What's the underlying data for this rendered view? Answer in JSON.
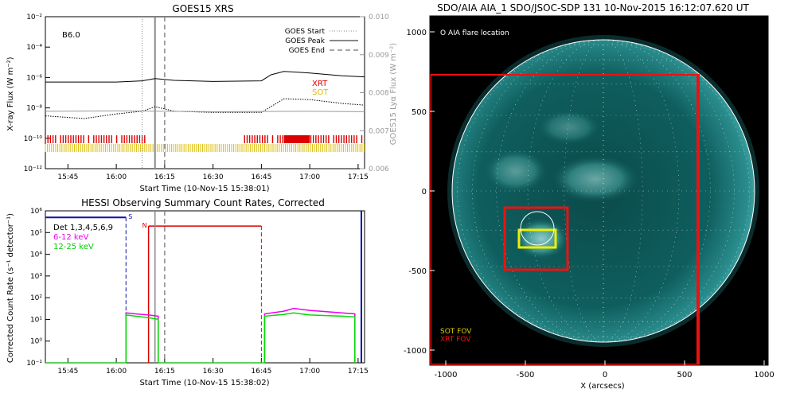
{
  "panel_goes": {
    "title": "GOES15 XRS",
    "class_label": "B6.0",
    "ylabel_left": "X-ray Flux (W m⁻²)",
    "ylabel_right": "GOES15 Lyα Flux (W m⁻²)",
    "xlabel": "Start Time (10-Nov-15 15:38:01)",
    "legend": [
      "GOES Start",
      "GOES Peak",
      "GOES End"
    ],
    "inst_xrt": "XRT",
    "inst_sot": "SOT",
    "xticks": [
      "15:45",
      "16:00",
      "16:15",
      "16:30",
      "16:45",
      "17:00",
      "17:15"
    ],
    "yticks_left": [
      "10⁻²",
      "10⁻⁴",
      "10⁻⁶",
      "10⁻⁸",
      "10⁻¹⁰",
      "10⁻¹²"
    ],
    "yticks_right": [
      "0.010",
      "0.009",
      "0.008",
      "0.007",
      "0.006"
    ]
  },
  "panel_hessi": {
    "title": "HESSI Observing Summary Count Rates, Corrected",
    "ylabel": "Corrected Count Rate (s⁻¹ detector⁻¹)",
    "xlabel": "Start Time (10-Nov-15 15:38:02)",
    "legend": [
      "Det 1,3,4,5,6,9",
      "6-12 keV",
      "12-25 keV"
    ],
    "flag_s": "S",
    "flag_n": "N",
    "xticks": [
      "15:45",
      "16:00",
      "16:15",
      "16:30",
      "16:45",
      "17:00",
      "17:15"
    ],
    "yticks": [
      "10⁶",
      "10⁵",
      "10⁴",
      "10³",
      "10²",
      "10¹",
      "10⁰",
      "10⁻¹"
    ]
  },
  "panel_aia": {
    "title": "SDO/AIA AIA_1 SDO/JSOC-SDP 131 10-Nov-2015 16:12:07.620 UT",
    "flare_label": "O AIA flare location",
    "sot_fov": "SOT FOV",
    "xrt_fov": "XRT FOV",
    "xlabel": "X (arcsecs)",
    "xticks": [
      "-1000",
      "-500",
      "0",
      "500",
      "1000"
    ],
    "yticks": [
      "1000",
      "500",
      "0",
      "-500",
      "-1000"
    ]
  },
  "chart_data": [
    {
      "type": "line",
      "title": "GOES15 XRS",
      "xlabel": "Start Time (10-Nov-15 15:38:01)",
      "ylabel": "X-ray Flux (W m⁻²)",
      "y2label": "GOES15 Lyα Flux (W m⁻²)",
      "x_range": [
        "15:38",
        "17:17"
      ],
      "ylim": [
        1e-12,
        0.01
      ],
      "y_log": true,
      "y2lim": [
        0.006,
        0.01
      ],
      "markers": {
        "goes_start": "16:08",
        "goes_peak": "16:12",
        "goes_end": "16:15"
      },
      "series": [
        {
          "name": "",
          "color": "#000000",
          "x": [
            "15:38",
            "16:00",
            "16:08",
            "16:12",
            "16:18",
            "16:30",
            "16:45",
            "16:48",
            "16:52",
            "17:00",
            "17:10",
            "17:17"
          ],
          "y": [
            5e-07,
            5e-07,
            6e-07,
            8.5e-07,
            6.5e-07,
            5.5e-07,
            6e-07,
            1.5e-06,
            2.5e-06,
            2e-06,
            1.3e-06,
            1.1e-06
          ]
        },
        {
          "name": "",
          "color": "#000000",
          "style": "dotted",
          "x": [
            "15:38",
            "15:50",
            "16:00",
            "16:08",
            "16:12",
            "16:18",
            "16:30",
            "16:45",
            "16:52",
            "17:00",
            "17:10",
            "17:17"
          ],
          "y": [
            3e-09,
            2e-09,
            4e-09,
            6e-09,
            1.2e-08,
            6e-09,
            5e-09,
            5e-09,
            4e-08,
            3.5e-08,
            2e-08,
            1.5e-08
          ]
        },
        {
          "name": "",
          "color": "#999999",
          "x": [
            "15:38",
            "16:00",
            "16:30",
            "17:00",
            "17:17"
          ],
          "y": [
            0.00751,
            0.00752,
            0.0075,
            0.00751,
            0.0075
          ],
          "axis": "right"
        }
      ],
      "legend": [
        "GOES Start",
        "GOES Peak",
        "GOES End"
      ],
      "legend_position": "top-right",
      "annotations": [
        "B6.0",
        "XRT",
        "SOT"
      ],
      "coverage": [
        {
          "instrument": "XRT",
          "color": "#dd0000",
          "intervals": [
            [
              "15:38",
              "16:10"
            ],
            [
              "16:39",
              "17:17"
            ]
          ],
          "dense": [
            "16:52",
            "17:00"
          ]
        },
        {
          "instrument": "SOT",
          "color": "#ddbb00",
          "intervals": [
            [
              "15:38",
              "17:17"
            ]
          ]
        }
      ]
    },
    {
      "type": "line",
      "title": "HESSI Observing Summary Count Rates, Corrected",
      "xlabel": "Start Time (10-Nov-15 15:38:02)",
      "ylabel": "Corrected Count Rate (s⁻¹ detector⁻¹)",
      "x_range": [
        "15:38",
        "17:17"
      ],
      "ylim": [
        0.1,
        1000000.0
      ],
      "y_log": true,
      "legend": [
        "Det 1,3,4,5,6,9",
        "6-12 keV",
        "12-25 keV"
      ],
      "legend_position": "top-left",
      "flags": [
        {
          "label": "S",
          "color": "#1010aa",
          "level": 500000,
          "x": [
            "15:38",
            "16:03"
          ]
        },
        {
          "label": "N",
          "color": "#dd0000",
          "level": 200000,
          "x": [
            "16:10",
            "16:45"
          ]
        }
      ],
      "markers": {
        "saa_end": "16:03",
        "night_start": "16:10",
        "goes_peak": "16:12",
        "goes_end": "16:15",
        "night_end": "16:45",
        "saa_start": "17:16"
      },
      "series": [
        {
          "name": "6-12 keV",
          "color": "#ee00ee",
          "x": [
            "16:03",
            "16:06",
            "16:10",
            "16:13",
            "16:46",
            "16:52",
            "16:55",
            "17:00",
            "17:10",
            "17:14"
          ],
          "y": [
            20,
            18,
            16,
            14,
            18,
            24,
            32,
            26,
            20,
            18
          ]
        },
        {
          "name": "12-25 keV",
          "color": "#00dd00",
          "x": [
            "16:03",
            "16:06",
            "16:10",
            "16:13",
            "16:46",
            "16:52",
            "16:55",
            "17:00",
            "17:10",
            "17:14"
          ],
          "y": [
            16,
            14,
            12,
            10,
            14,
            17,
            20,
            16,
            14,
            13
          ]
        }
      ]
    }
  ]
}
